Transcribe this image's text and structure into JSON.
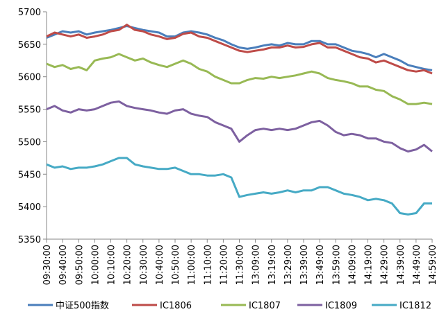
{
  "chart_data": {
    "type": "line",
    "categories": [
      "09:30:00",
      null,
      "09:40:00",
      null,
      "09:50:00",
      null,
      "10:00:00",
      null,
      "10:10:00",
      null,
      "10:20:00",
      null,
      "10:30:00",
      null,
      "10:40:00",
      null,
      "10:50:00",
      null,
      "11:00:00",
      null,
      "11:10:00",
      null,
      "11:20:00",
      null,
      "11:30:00",
      null,
      "13:09:00",
      null,
      "13:19:00",
      null,
      "13:29:00",
      null,
      "13:39:00",
      null,
      "13:49:00",
      null,
      "13:59:00",
      null,
      "14:09:00",
      null,
      "14:19:00",
      null,
      "14:29:00",
      null,
      "14:39:00",
      null,
      "14:49:00",
      null,
      "14:59:00"
    ],
    "series": [
      {
        "name": "中证500指数",
        "color": "#4a7ebb",
        "values": [
          5660,
          5665,
          5670,
          5668,
          5670,
          5665,
          5668,
          5670,
          5672,
          5675,
          5678,
          5675,
          5672,
          5670,
          5668,
          5662,
          5662,
          5668,
          5670,
          5668,
          5665,
          5660,
          5656,
          5650,
          5645,
          5643,
          5645,
          5648,
          5650,
          5648,
          5652,
          5650,
          5650,
          5655,
          5655,
          5650,
          5650,
          5645,
          5640,
          5638,
          5635,
          5630,
          5635,
          5630,
          5625,
          5618,
          5615,
          5612,
          5610
        ]
      },
      {
        "name": "IC1806",
        "color": "#be4b48",
        "values": [
          5662,
          5668,
          5665,
          5662,
          5665,
          5660,
          5662,
          5665,
          5670,
          5672,
          5680,
          5672,
          5670,
          5665,
          5662,
          5658,
          5660,
          5666,
          5668,
          5662,
          5660,
          5655,
          5650,
          5645,
          5640,
          5638,
          5640,
          5642,
          5645,
          5645,
          5648,
          5645,
          5646,
          5650,
          5652,
          5645,
          5645,
          5640,
          5635,
          5630,
          5628,
          5622,
          5625,
          5620,
          5615,
          5610,
          5608,
          5610,
          5605
        ]
      },
      {
        "name": "IC1807",
        "color": "#98b954",
        "values": [
          5620,
          5615,
          5618,
          5612,
          5615,
          5610,
          5625,
          5628,
          5630,
          5635,
          5630,
          5625,
          5628,
          5622,
          5618,
          5615,
          5620,
          5625,
          5620,
          5612,
          5608,
          5600,
          5595,
          5590,
          5590,
          5595,
          5598,
          5597,
          5600,
          5598,
          5600,
          5602,
          5605,
          5608,
          5605,
          5598,
          5595,
          5593,
          5590,
          5585,
          5585,
          5580,
          5578,
          5570,
          5565,
          5558,
          5558,
          5560,
          5558
        ]
      },
      {
        "name": "IC1809",
        "color": "#7d60a0",
        "values": [
          5550,
          5555,
          5548,
          5545,
          5550,
          5548,
          5550,
          5555,
          5560,
          5562,
          5555,
          5552,
          5550,
          5548,
          5545,
          5543,
          5548,
          5550,
          5543,
          5540,
          5538,
          5530,
          5525,
          5520,
          5500,
          5510,
          5518,
          5520,
          5518,
          5520,
          5518,
          5520,
          5525,
          5530,
          5532,
          5525,
          5515,
          5510,
          5512,
          5510,
          5505,
          5505,
          5500,
          5498,
          5490,
          5485,
          5488,
          5495,
          5485
        ]
      },
      {
        "name": "IC1812",
        "color": "#46aac5",
        "values": [
          5465,
          5460,
          5462,
          5458,
          5460,
          5460,
          5462,
          5465,
          5470,
          5475,
          5475,
          5465,
          5462,
          5460,
          5458,
          5458,
          5460,
          5455,
          5450,
          5450,
          5448,
          5448,
          5450,
          5445,
          5415,
          5418,
          5420,
          5422,
          5420,
          5422,
          5425,
          5422,
          5425,
          5425,
          5430,
          5430,
          5425,
          5420,
          5418,
          5415,
          5410,
          5412,
          5410,
          5405,
          5390,
          5388,
          5390,
          5405,
          5405
        ]
      }
    ],
    "ylim": [
      5350,
      5700
    ],
    "yticks": [
      5350,
      5400,
      5450,
      5500,
      5550,
      5600,
      5650,
      5700
    ]
  }
}
